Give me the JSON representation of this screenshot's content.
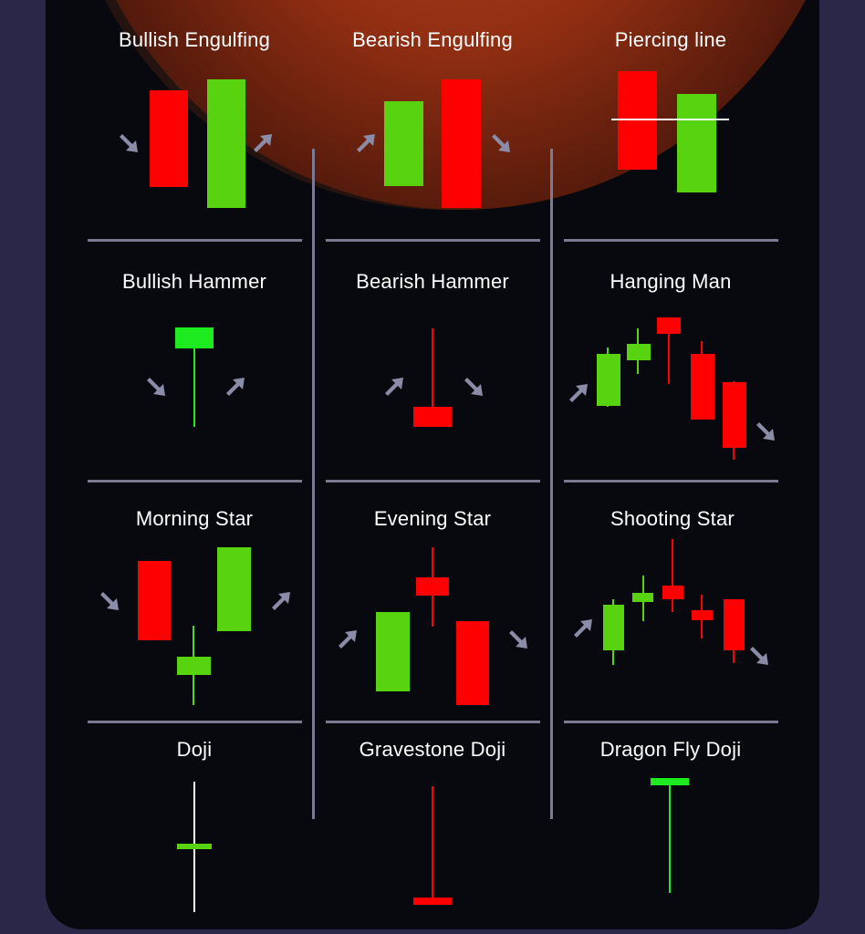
{
  "colors": {
    "bull": "#57d40f",
    "bull_bright": "#1eea20",
    "bear": "#fe0000",
    "arrow": "#8a8ca8",
    "divider": "#7a7b92",
    "background": "#08090e",
    "outer": "#2a2748"
  },
  "patterns": [
    {
      "id": "bullish-engulfing",
      "title": "Bullish Engulfing"
    },
    {
      "id": "bearish-engulfing",
      "title": "Bearish Engulfing"
    },
    {
      "id": "piercing-line",
      "title": "Piercing line"
    },
    {
      "id": "bullish-hammer",
      "title": "Bullish Hammer"
    },
    {
      "id": "bearish-hammer",
      "title": "Bearish Hammer"
    },
    {
      "id": "hanging-man",
      "title": "Hanging Man"
    },
    {
      "id": "morning-star",
      "title": "Morning Star"
    },
    {
      "id": "evening-star",
      "title": "Evening Star"
    },
    {
      "id": "shooting-star",
      "title": "Shooting Star"
    },
    {
      "id": "doji",
      "title": "Doji"
    },
    {
      "id": "gravestone-doji",
      "title": "Gravestone Doji"
    },
    {
      "id": "dragon-fly-doji",
      "title": "Dragon Fly Doji"
    }
  ]
}
